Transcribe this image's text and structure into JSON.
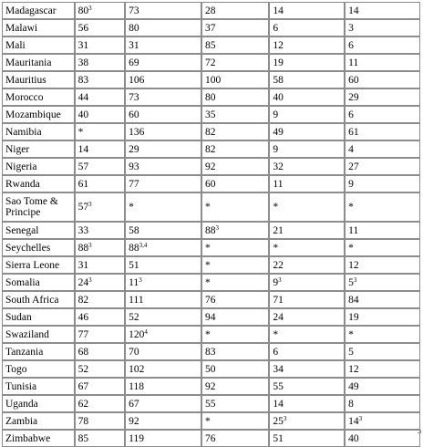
{
  "table": {
    "rows": [
      {
        "country": "Madagascar",
        "cells": [
          {
            "v": "80",
            "sup": "3"
          },
          {
            "v": "73"
          },
          {
            "v": "28"
          },
          {
            "v": "14"
          },
          {
            "v": "14"
          }
        ]
      },
      {
        "country": "Malawi",
        "cells": [
          {
            "v": "56"
          },
          {
            "v": "80"
          },
          {
            "v": "37"
          },
          {
            "v": "6"
          },
          {
            "v": "3"
          }
        ]
      },
      {
        "country": "Mali",
        "cells": [
          {
            "v": "31"
          },
          {
            "v": "31"
          },
          {
            "v": "85"
          },
          {
            "v": "12"
          },
          {
            "v": "6"
          }
        ]
      },
      {
        "country": "Mauritania",
        "cells": [
          {
            "v": "38"
          },
          {
            "v": "69"
          },
          {
            "v": "72"
          },
          {
            "v": "19"
          },
          {
            "v": "11"
          }
        ]
      },
      {
        "country": "Mauritius",
        "cells": [
          {
            "v": "83"
          },
          {
            "v": "106"
          },
          {
            "v": "100"
          },
          {
            "v": "58"
          },
          {
            "v": "60"
          }
        ]
      },
      {
        "country": "Morocco",
        "cells": [
          {
            "v": "44"
          },
          {
            "v": "73"
          },
          {
            "v": "80"
          },
          {
            "v": "40"
          },
          {
            "v": "29"
          }
        ]
      },
      {
        "country": "Mozambique",
        "cells": [
          {
            "v": "40"
          },
          {
            "v": "60"
          },
          {
            "v": "35"
          },
          {
            "v": "9"
          },
          {
            "v": "6"
          }
        ]
      },
      {
        "country": "Namibia",
        "cells": [
          {
            "v": "*"
          },
          {
            "v": "136"
          },
          {
            "v": "82"
          },
          {
            "v": "49"
          },
          {
            "v": "61"
          }
        ]
      },
      {
        "country": "Niger",
        "cells": [
          {
            "v": "14"
          },
          {
            "v": "29"
          },
          {
            "v": "82"
          },
          {
            "v": "9"
          },
          {
            "v": "4"
          }
        ]
      },
      {
        "country": "Nigeria",
        "cells": [
          {
            "v": "57"
          },
          {
            "v": "93"
          },
          {
            "v": "92"
          },
          {
            "v": "32"
          },
          {
            "v": "27"
          }
        ]
      },
      {
        "country": "Rwanda",
        "cells": [
          {
            "v": "61"
          },
          {
            "v": "77"
          },
          {
            "v": "60"
          },
          {
            "v": "11"
          },
          {
            "v": "9"
          }
        ]
      },
      {
        "country": "Sao Tome & Principe",
        "tall": true,
        "cells": [
          {
            "v": "57",
            "sup": "3"
          },
          {
            "v": "*"
          },
          {
            "v": "*"
          },
          {
            "v": "*"
          },
          {
            "v": "*"
          }
        ]
      },
      {
        "country": "Senegal",
        "cells": [
          {
            "v": "33"
          },
          {
            "v": "58"
          },
          {
            "v": "88",
            "sup": "3"
          },
          {
            "v": "21"
          },
          {
            "v": "11"
          }
        ]
      },
      {
        "country": "Seychelles",
        "cells": [
          {
            "v": "88",
            "sup": "3"
          },
          {
            "v": "88",
            "sup": "3,4"
          },
          {
            "v": "*"
          },
          {
            "v": "*"
          },
          {
            "v": "*"
          }
        ]
      },
      {
        "country": "Sierra Leone",
        "cells": [
          {
            "v": "31"
          },
          {
            "v": "51"
          },
          {
            "v": "*"
          },
          {
            "v": "22"
          },
          {
            "v": "12"
          }
        ]
      },
      {
        "country": "Somalia",
        "cells": [
          {
            "v": "24",
            "sup": "3"
          },
          {
            "v": "11",
            "sup": "3"
          },
          {
            "v": "*"
          },
          {
            "v": "9",
            "sup": "3"
          },
          {
            "v": "5",
            "sup": "3"
          }
        ]
      },
      {
        "country": "South Africa",
        "cells": [
          {
            "v": "82"
          },
          {
            "v": "111"
          },
          {
            "v": "76"
          },
          {
            "v": "71"
          },
          {
            "v": "84"
          }
        ]
      },
      {
        "country": "Sudan",
        "cells": [
          {
            "v": "46"
          },
          {
            "v": "52"
          },
          {
            "v": "94"
          },
          {
            "v": "24"
          },
          {
            "v": "19"
          }
        ]
      },
      {
        "country": "Swaziland",
        "cells": [
          {
            "v": "77"
          },
          {
            "v": "120",
            "sup": "4"
          },
          {
            "v": "*"
          },
          {
            "v": "*"
          },
          {
            "v": "*"
          }
        ]
      },
      {
        "country": "Tanzania",
        "cells": [
          {
            "v": "68"
          },
          {
            "v": "70"
          },
          {
            "v": "83"
          },
          {
            "v": "6"
          },
          {
            "v": "5"
          }
        ]
      },
      {
        "country": "Togo",
        "cells": [
          {
            "v": "52"
          },
          {
            "v": "102"
          },
          {
            "v": "50"
          },
          {
            "v": "34"
          },
          {
            "v": "12"
          }
        ]
      },
      {
        "country": "Tunisia",
        "cells": [
          {
            "v": "67"
          },
          {
            "v": "118"
          },
          {
            "v": "92"
          },
          {
            "v": "55"
          },
          {
            "v": "49"
          }
        ]
      },
      {
        "country": "Uganda",
        "cells": [
          {
            "v": "62"
          },
          {
            "v": "67"
          },
          {
            "v": "55"
          },
          {
            "v": "14"
          },
          {
            "v": "8"
          }
        ]
      },
      {
        "country": "Zambia",
        "cells": [
          {
            "v": "78"
          },
          {
            "v": "92"
          },
          {
            "v": "*"
          },
          {
            "v": "25",
            "sup": "3"
          },
          {
            "v": "14",
            "sup": "3"
          }
        ]
      },
      {
        "country": "Zimbabwe",
        "cells": [
          {
            "v": "85"
          },
          {
            "v": "119"
          },
          {
            "v": "76"
          },
          {
            "v": "51"
          },
          {
            "v": "40"
          }
        ]
      }
    ]
  },
  "colors": {
    "border": "#8c8c8c",
    "background": "#ffffff",
    "text": "#000000"
  }
}
